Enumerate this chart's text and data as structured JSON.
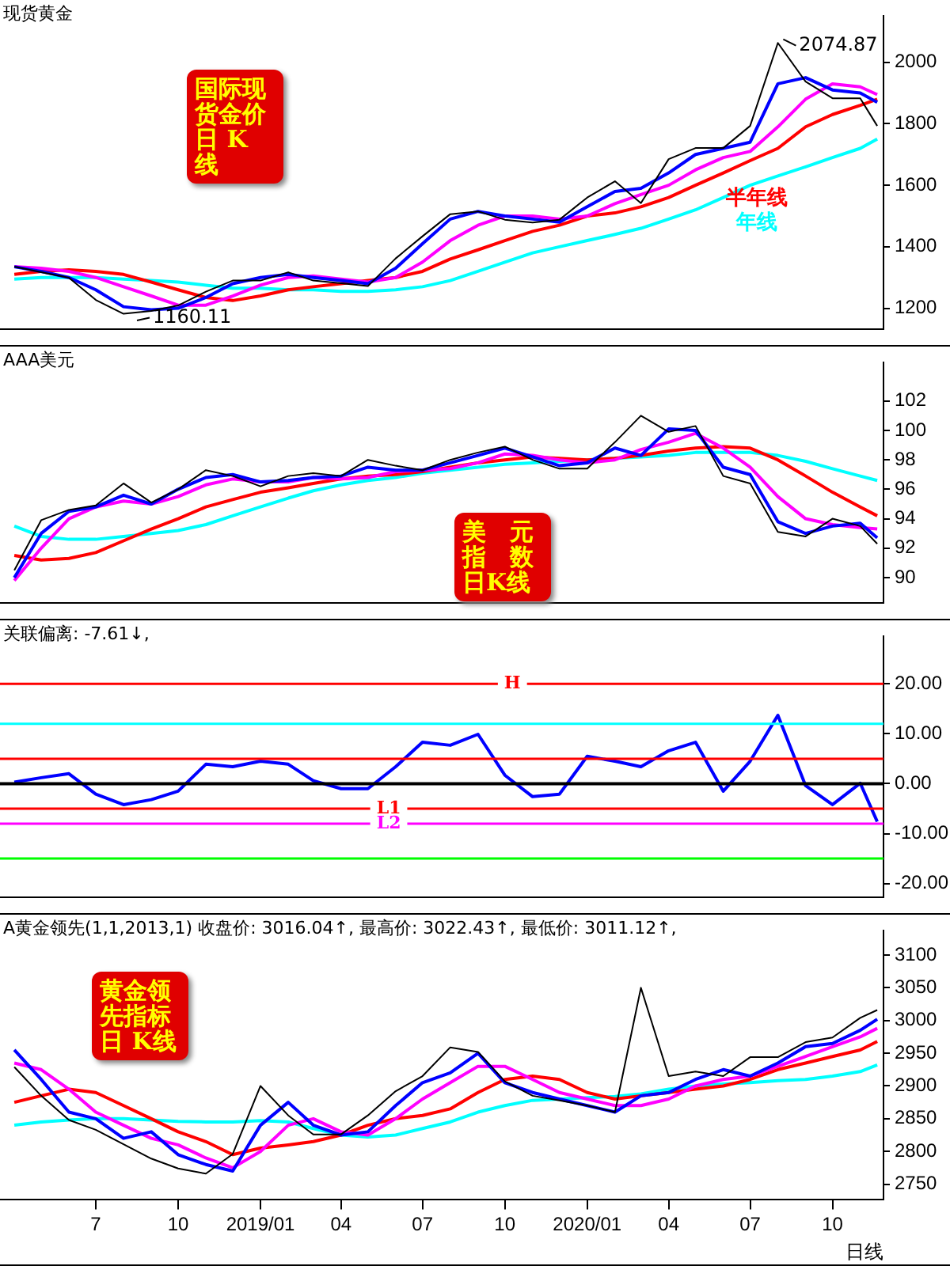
{
  "chart_data": [
    {
      "type": "line",
      "title": "现货黄金",
      "subtitle": "国际现货金价日 K 线",
      "legend": false,
      "grid": false,
      "tick_labels": "y",
      "marker": "none",
      "line_style": "solid",
      "x": [
        "2018-04-01",
        "2018-05-01",
        "2018-06-01",
        "2018-07-01",
        "2018-08-01",
        "2018-09-01",
        "2018-10-01",
        "2018-11-01",
        "2018-12-01",
        "2019-01-01",
        "2019-02-01",
        "2019-03-01",
        "2019-04-01",
        "2019-05-01",
        "2019-06-01",
        "2019-07-01",
        "2019-08-01",
        "2019-09-01",
        "2019-10-01",
        "2019-11-01",
        "2019-12-01",
        "2020-01-01",
        "2020-02-01",
        "2020-03-01",
        "2020-04-01",
        "2020-05-01",
        "2020-06-01",
        "2020-07-01",
        "2020-08-01",
        "2020-09-01",
        "2020-10-01",
        "2020-11-01",
        "2020-11-20"
      ],
      "xlim": [
        "2018-03-16",
        "2020-11-27"
      ],
      "ylim": [
        1133,
        2150
      ],
      "yticks": [
        1200,
        1400,
        1600,
        1800,
        2000
      ],
      "series": [
        {
          "color": "#000000",
          "values": [
            1335,
            1317,
            1299,
            1227,
            1182,
            1191,
            1209,
            1254,
            1290,
            1290,
            1317,
            1290,
            1281,
            1272,
            1362,
            1434,
            1506,
            1515,
            1488,
            1479,
            1488,
            1560,
            1613,
            1542,
            1685,
            1721,
            1721,
            1793,
            2063,
            1937,
            1883,
            1883,
            1793
          ]
        },
        {
          "color": "#0000ff",
          "values": [
            1335,
            1320,
            1300,
            1260,
            1205,
            1195,
            1200,
            1235,
            1280,
            1300,
            1310,
            1300,
            1290,
            1280,
            1330,
            1410,
            1490,
            1515,
            1500,
            1490,
            1480,
            1530,
            1580,
            1590,
            1640,
            1700,
            1720,
            1740,
            1930,
            1950,
            1910,
            1900,
            1870
          ]
        },
        {
          "color": "#ff00ff",
          "values": [
            1335,
            1330,
            1320,
            1300,
            1270,
            1240,
            1210,
            1210,
            1240,
            1275,
            1300,
            1305,
            1295,
            1285,
            1300,
            1350,
            1420,
            1470,
            1500,
            1500,
            1490,
            1500,
            1540,
            1570,
            1600,
            1650,
            1690,
            1710,
            1790,
            1880,
            1930,
            1920,
            1895
          ]
        },
        {
          "name": "半年线",
          "color": "#ff0000",
          "values": [
            1310,
            1320,
            1325,
            1320,
            1310,
            1285,
            1260,
            1235,
            1225,
            1240,
            1260,
            1270,
            1280,
            1290,
            1300,
            1320,
            1360,
            1390,
            1420,
            1450,
            1470,
            1500,
            1510,
            1530,
            1560,
            1600,
            1640,
            1680,
            1720,
            1790,
            1830,
            1860,
            1880
          ]
        },
        {
          "name": "年线",
          "color": "#00ffff",
          "values": [
            1295,
            1300,
            1300,
            1300,
            1295,
            1290,
            1285,
            1275,
            1265,
            1265,
            1260,
            1260,
            1255,
            1255,
            1260,
            1270,
            1290,
            1320,
            1350,
            1380,
            1400,
            1420,
            1440,
            1460,
            1490,
            1520,
            1560,
            1600,
            1630,
            1660,
            1690,
            1720,
            1750
          ]
        }
      ],
      "annotations": [
        {
          "text": "2074.87",
          "x": "2020-08-07",
          "y": 2074.87
        },
        {
          "text": "1160.11",
          "x": "2018-08-16",
          "y": 1160.11
        }
      ]
    },
    {
      "type": "line",
      "title": "AAA美元",
      "subtitle": "美　元指　数日K线",
      "legend": false,
      "grid": false,
      "tick_labels": "y",
      "marker": "none",
      "line_style": "solid",
      "x": [
        "2018-04-01",
        "2018-05-01",
        "2018-06-01",
        "2018-07-01",
        "2018-08-01",
        "2018-09-01",
        "2018-10-01",
        "2018-11-01",
        "2018-12-01",
        "2019-01-01",
        "2019-02-01",
        "2019-03-01",
        "2019-04-01",
        "2019-05-01",
        "2019-06-01",
        "2019-07-01",
        "2019-08-01",
        "2019-09-01",
        "2019-10-01",
        "2019-11-01",
        "2019-12-01",
        "2020-01-01",
        "2020-02-01",
        "2020-03-01",
        "2020-04-01",
        "2020-05-01",
        "2020-06-01",
        "2020-07-01",
        "2020-08-01",
        "2020-09-01",
        "2020-10-01",
        "2020-11-01",
        "2020-11-20"
      ],
      "xlim": [
        "2018-03-16",
        "2020-11-27"
      ],
      "ylim": [
        88.3,
        104.6
      ],
      "yticks": [
        90,
        92,
        94,
        96,
        98,
        100,
        102
      ],
      "series": [
        {
          "color": "#000000",
          "values": [
            90.5,
            93.9,
            94.6,
            94.9,
            96.4,
            95.1,
            96.0,
            97.3,
            96.9,
            96.2,
            96.9,
            97.1,
            96.9,
            98.0,
            97.6,
            97.3,
            98.0,
            98.5,
            98.9,
            98.0,
            97.4,
            97.4,
            99.2,
            101.0,
            99.9,
            100.3,
            96.9,
            96.4,
            93.1,
            92.8,
            94.0,
            93.5,
            92.3
          ]
        },
        {
          "color": "#0000ff",
          "values": [
            90.0,
            93.0,
            94.5,
            94.8,
            95.6,
            95.0,
            96.0,
            96.8,
            97.0,
            96.5,
            96.6,
            96.8,
            96.9,
            97.5,
            97.3,
            97.3,
            97.8,
            98.3,
            98.8,
            98.2,
            97.6,
            97.8,
            98.8,
            98.3,
            100.1,
            100.0,
            97.5,
            97.0,
            93.8,
            93.0,
            93.5,
            93.7,
            92.7
          ]
        },
        {
          "color": "#ff00ff",
          "values": [
            89.8,
            92.0,
            94.0,
            94.8,
            95.2,
            95.0,
            95.5,
            96.3,
            96.7,
            96.5,
            96.5,
            96.8,
            96.7,
            96.8,
            97.2,
            97.3,
            97.4,
            97.8,
            98.4,
            98.3,
            98.0,
            97.8,
            98.0,
            98.7,
            99.2,
            99.8,
            98.8,
            97.5,
            95.5,
            94.0,
            93.6,
            93.4,
            93.3
          ]
        },
        {
          "color": "#ff0000",
          "values": [
            91.5,
            91.2,
            91.3,
            91.7,
            92.5,
            93.3,
            94.0,
            94.8,
            95.3,
            95.8,
            96.1,
            96.4,
            96.7,
            96.9,
            97.0,
            97.2,
            97.5,
            97.8,
            98.0,
            98.2,
            98.1,
            98.0,
            98.1,
            98.3,
            98.6,
            98.8,
            98.9,
            98.8,
            98.0,
            96.9,
            95.8,
            94.8,
            94.2
          ]
        },
        {
          "color": "#00ffff",
          "values": [
            93.5,
            92.8,
            92.6,
            92.6,
            92.8,
            93.0,
            93.2,
            93.6,
            94.2,
            94.8,
            95.4,
            95.9,
            96.3,
            96.6,
            96.8,
            97.1,
            97.3,
            97.5,
            97.7,
            97.8,
            97.9,
            98.0,
            98.1,
            98.2,
            98.3,
            98.5,
            98.5,
            98.5,
            98.3,
            97.9,
            97.4,
            96.9,
            96.6
          ]
        }
      ]
    },
    {
      "type": "line",
      "title": "关联偏离: -7.61↓,",
      "legend": false,
      "grid": false,
      "tick_labels": "y",
      "marker": "none",
      "line_style": "solid",
      "x": [
        "2018-04-01",
        "2018-05-01",
        "2018-06-01",
        "2018-07-01",
        "2018-08-01",
        "2018-09-01",
        "2018-10-01",
        "2018-11-01",
        "2018-12-01",
        "2019-01-01",
        "2019-02-01",
        "2019-03-01",
        "2019-04-01",
        "2019-05-01",
        "2019-06-01",
        "2019-07-01",
        "2019-08-01",
        "2019-09-01",
        "2019-10-01",
        "2019-11-01",
        "2019-12-01",
        "2020-01-01",
        "2020-02-01",
        "2020-03-01",
        "2020-04-01",
        "2020-05-01",
        "2020-06-01",
        "2020-07-01",
        "2020-08-01",
        "2020-09-01",
        "2020-10-01",
        "2020-11-01",
        "2020-11-20"
      ],
      "xlim": [
        "2018-03-16",
        "2020-11-27"
      ],
      "ylim": [
        -22.7,
        29.5
      ],
      "yticks": [
        {
          "value": 20,
          "label": "20.00"
        },
        {
          "value": 10,
          "label": "10.00"
        },
        {
          "value": 0,
          "label": "0.00"
        },
        {
          "value": -10,
          "label": "-10.00"
        },
        {
          "value": -20,
          "label": "-20.00"
        }
      ],
      "series": [
        {
          "color": "#0000ff",
          "values": [
            0.3,
            1.2,
            2.0,
            -2.1,
            -4.2,
            -3.2,
            -1.5,
            3.9,
            3.4,
            4.5,
            3.9,
            0.6,
            -1.0,
            -1.0,
            3.4,
            8.3,
            7.7,
            9.9,
            1.7,
            -2.6,
            -2.1,
            5.5,
            4.5,
            3.4,
            6.6,
            8.3,
            -1.5,
            4.5,
            13.7,
            -0.4,
            -4.2,
            0.1,
            -7.6
          ]
        }
      ],
      "ref_lines": [
        {
          "axis": "y",
          "value": 20,
          "label": "H",
          "color": "#ff0000"
        },
        {
          "axis": "y",
          "value": 12,
          "color": "#00ffff"
        },
        {
          "axis": "y",
          "value": 5,
          "color": "#ff0000"
        },
        {
          "axis": "y",
          "value": 0,
          "color": "#000000"
        },
        {
          "axis": "y",
          "value": -5,
          "label": "L1",
          "color": "#ff0000"
        },
        {
          "axis": "y",
          "value": -8,
          "label": "L2",
          "color": "#ff00ff"
        },
        {
          "axis": "y",
          "value": -15,
          "color": "#00ff00"
        }
      ]
    },
    {
      "type": "line",
      "title": "A黄金领先(1,1,2013,1) 收盘价: 3016.04↑, 最高价: 3022.43↑, 最低价: 3011.12↑,",
      "subtitle": "黄金领先指标日 K线",
      "xlabel": "日线",
      "legend": false,
      "grid": false,
      "marker": "none",
      "line_style": "solid",
      "x": [
        "2018-04-01",
        "2018-05-01",
        "2018-06-01",
        "2018-07-01",
        "2018-08-01",
        "2018-09-01",
        "2018-10-01",
        "2018-11-01",
        "2018-12-01",
        "2019-01-01",
        "2019-02-01",
        "2019-03-01",
        "2019-04-01",
        "2019-05-01",
        "2019-06-01",
        "2019-07-01",
        "2019-08-01",
        "2019-09-01",
        "2019-10-01",
        "2019-11-01",
        "2019-12-01",
        "2020-01-01",
        "2020-02-01",
        "2020-03-01",
        "2020-04-01",
        "2020-05-01",
        "2020-06-01",
        "2020-07-01",
        "2020-08-01",
        "2020-09-01",
        "2020-10-01",
        "2020-11-01",
        "2020-11-20"
      ],
      "xlim": [
        "2018-03-16",
        "2020-11-27"
      ],
      "xticks": [
        {
          "value": "2018-07-01",
          "label": "7"
        },
        {
          "value": "2018-10-01",
          "label": "10"
        },
        {
          "value": "2019-01-01",
          "label": "2019/01"
        },
        {
          "value": "2019-04-01",
          "label": "04"
        },
        {
          "value": "2019-07-01",
          "label": "07"
        },
        {
          "value": "2019-10-01",
          "label": "10"
        },
        {
          "value": "2020-01-01",
          "label": "2020/01"
        },
        {
          "value": "2020-04-01",
          "label": "04"
        },
        {
          "value": "2020-07-01",
          "label": "07"
        },
        {
          "value": "2020-10-01",
          "label": "10"
        }
      ],
      "ylim": [
        2726,
        3137
      ],
      "yticks": [
        2750,
        2800,
        2850,
        2900,
        2950,
        3000,
        3050,
        3100
      ],
      "series": [
        {
          "color": "#000000",
          "values": [
            2929,
            2885,
            2848,
            2833,
            2811,
            2789,
            2774,
            2766,
            2796,
            2900,
            2855,
            2826,
            2826,
            2855,
            2892,
            2915,
            2959,
            2952,
            2907,
            2885,
            2878,
            2870,
            2860,
            3050,
            2915,
            2922,
            2915,
            2944,
            2944,
            2967,
            2974,
            3004,
            3016
          ]
        },
        {
          "color": "#0000ff",
          "values": [
            2955,
            2910,
            2860,
            2850,
            2820,
            2830,
            2795,
            2780,
            2770,
            2840,
            2875,
            2840,
            2825,
            2830,
            2870,
            2905,
            2920,
            2950,
            2905,
            2890,
            2880,
            2870,
            2860,
            2885,
            2890,
            2910,
            2925,
            2915,
            2935,
            2960,
            2965,
            2985,
            3002
          ]
        },
        {
          "color": "#ff00ff",
          "values": [
            2935,
            2925,
            2895,
            2860,
            2840,
            2820,
            2810,
            2790,
            2775,
            2800,
            2840,
            2850,
            2830,
            2825,
            2850,
            2880,
            2905,
            2930,
            2930,
            2910,
            2890,
            2880,
            2870,
            2870,
            2880,
            2900,
            2910,
            2915,
            2930,
            2945,
            2960,
            2975,
            2988
          ]
        },
        {
          "color": "#ff0000",
          "values": [
            2875,
            2885,
            2895,
            2890,
            2870,
            2850,
            2830,
            2815,
            2795,
            2805,
            2810,
            2815,
            2825,
            2840,
            2850,
            2855,
            2865,
            2890,
            2910,
            2915,
            2910,
            2890,
            2880,
            2885,
            2890,
            2895,
            2900,
            2910,
            2925,
            2935,
            2945,
            2955,
            2968
          ]
        },
        {
          "color": "#00ffff",
          "values": [
            2840,
            2845,
            2848,
            2850,
            2850,
            2848,
            2846,
            2845,
            2845,
            2847,
            2845,
            2835,
            2825,
            2822,
            2825,
            2835,
            2845,
            2860,
            2870,
            2878,
            2880,
            2882,
            2884,
            2888,
            2895,
            2900,
            2903,
            2905,
            2908,
            2910,
            2915,
            2922,
            2932
          ]
        }
      ]
    }
  ]
}
